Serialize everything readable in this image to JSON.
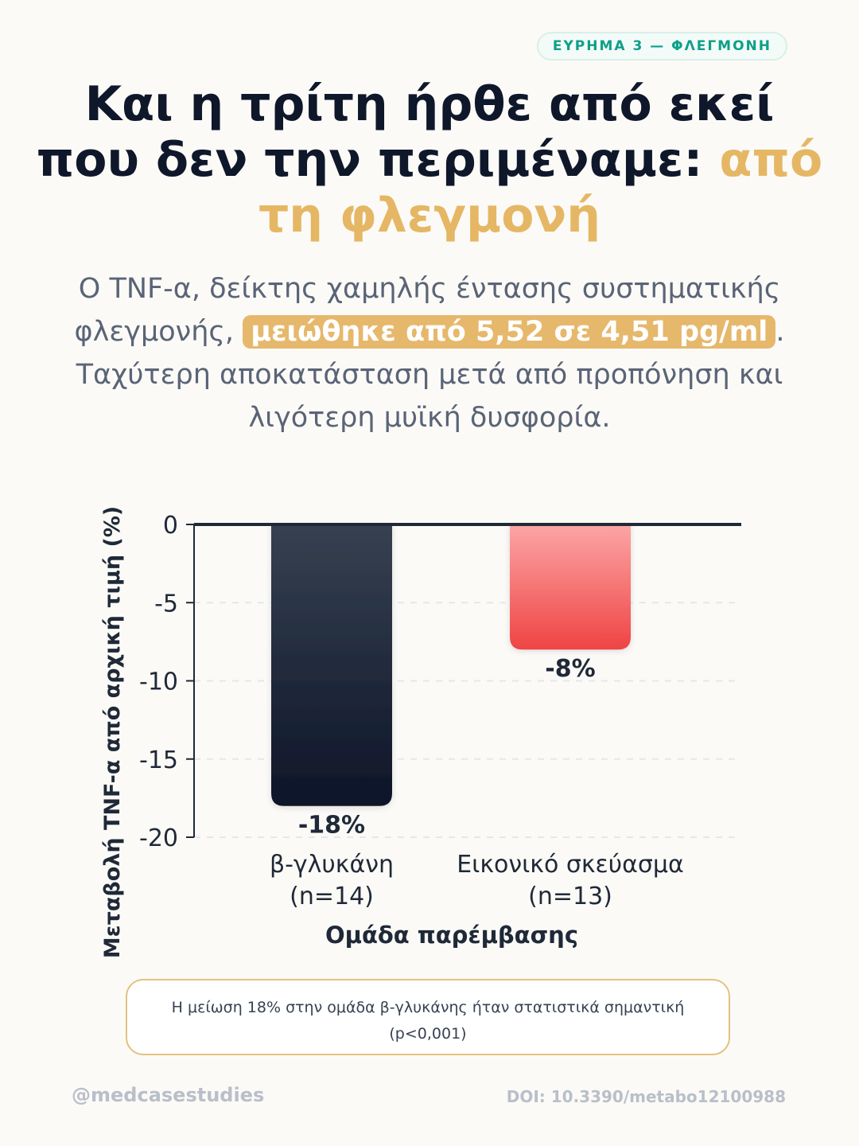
{
  "badge": "ΕΥΡΗΜΑ 3 — ΦΛΕΓΜΟΝΗ",
  "title": {
    "main": "Και η τρίτη ήρθε από εκεί που δεν την περιμέναμε: ",
    "accent": "από τη φλεγμονή"
  },
  "lead": {
    "part1": "Ο TNF-α, δείκτης χαμηλής έντασης συστηματικής φλεγμονής, ",
    "highlight": "μειώθηκε από 5,52 σε 4,51 pg/ml",
    "part2": ". Ταχύτερη αποκατάσταση μετά από προπόνηση και λιγότερη μυϊκή δυσφορία."
  },
  "chart_data": {
    "type": "bar",
    "xlabel": "Ομάδα παρέμβασης",
    "ylabel": "Μεταβολή TNF-α από αρχική τιμή (%)",
    "ylim": [
      -20,
      0
    ],
    "yticks": [
      0,
      -5,
      -10,
      -15,
      -20
    ],
    "ytick_labels": [
      "0",
      "-5",
      "-10",
      "-15",
      "-20"
    ],
    "grid": true,
    "categories": [
      {
        "name": "β-γλυκάνη",
        "n": "(n=14)"
      },
      {
        "name": "Εικονικό σκεύασμα",
        "n": "(n=13)"
      }
    ],
    "values": [
      -18,
      -8
    ],
    "value_labels": [
      "-18%",
      "-8%"
    ],
    "colors": [
      {
        "top": "#374151",
        "bottom": "#0d1528"
      },
      {
        "top": "#fca5a5",
        "bottom": "#ef4444"
      }
    ]
  },
  "note": "Η μείωση 18% στην ομάδα β-γλυκάνης ήταν στατιστικά σημαντική (p<0,001)",
  "footer": {
    "handle": "@medcasestudies",
    "doi": "DOI: 10.3390/metabo12100988"
  }
}
